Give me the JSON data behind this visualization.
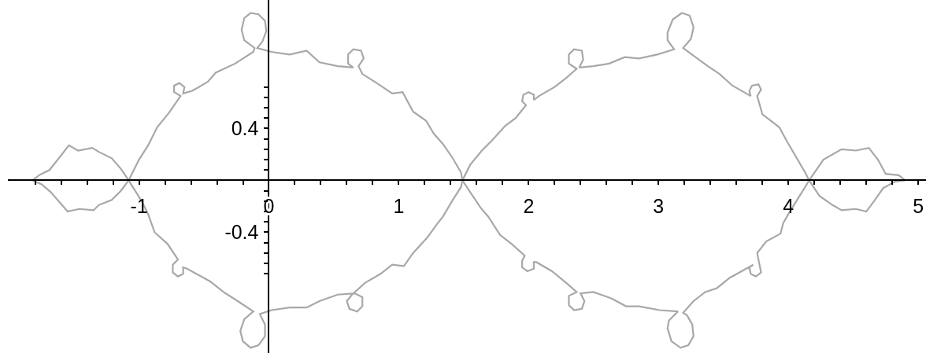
{
  "chart_data": {
    "type": "line",
    "xlim": [
      -2.01,
      5.06
    ],
    "ylim": [
      -1.33,
      1.39
    ],
    "xticks": [
      {
        "value": -1.8,
        "label": null
      },
      {
        "value": -1.6,
        "label": null
      },
      {
        "value": -1.4,
        "label": null
      },
      {
        "value": -1.2,
        "label": null
      },
      -1,
      {
        "value": -0.8,
        "label": null
      },
      {
        "value": -0.6,
        "label": null
      },
      {
        "value": -0.4,
        "label": null
      },
      {
        "value": -0.2,
        "label": null
      },
      0,
      {
        "value": 0.2,
        "label": null
      },
      {
        "value": 0.4,
        "label": null
      },
      {
        "value": 0.6,
        "label": null
      },
      {
        "value": 0.8,
        "label": null
      },
      1,
      {
        "value": 1.2,
        "label": null
      },
      {
        "value": 1.4,
        "label": null
      },
      {
        "value": 1.6,
        "label": null
      },
      {
        "value": 1.8,
        "label": null
      },
      2,
      {
        "value": 2.2,
        "label": null
      },
      {
        "value": 2.4,
        "label": null
      },
      {
        "value": 2.6,
        "label": null
      },
      {
        "value": 2.8,
        "label": null
      },
      3,
      {
        "value": 3.2,
        "label": null
      },
      {
        "value": 3.4,
        "label": null
      },
      {
        "value": 3.6,
        "label": null
      },
      {
        "value": 3.8,
        "label": null
      },
      4,
      {
        "value": 4.2,
        "label": null
      },
      {
        "value": 4.4,
        "label": null
      },
      {
        "value": 4.6,
        "label": null
      },
      {
        "value": 4.8,
        "label": null
      },
      5
    ],
    "yticks": [
      {
        "value": -0.72,
        "label": null
      },
      {
        "value": -0.64,
        "label": null
      },
      {
        "value": -0.56,
        "label": null
      },
      {
        "value": -0.48,
        "label": null
      },
      -0.4,
      {
        "value": -0.32,
        "label": null
      },
      {
        "value": -0.24,
        "label": null
      },
      {
        "value": -0.16,
        "label": null
      },
      {
        "value": -0.08,
        "label": null
      },
      {
        "value": 0.08,
        "label": null
      },
      {
        "value": 0.16,
        "label": null
      },
      {
        "value": 0.24,
        "label": null
      },
      {
        "value": 0.32,
        "label": null
      },
      0.4,
      {
        "value": 0.48,
        "label": null
      },
      {
        "value": 0.56,
        "label": null
      },
      {
        "value": 0.64,
        "label": null
      },
      {
        "value": 0.72,
        "label": null
      }
    ],
    "series": [
      {
        "color": "#a8a8a8",
        "x": [
          -1.82,
          -1.77,
          -1.69,
          -1.61,
          -1.54,
          -1.47,
          -1.36,
          -1.31,
          -1.21,
          -1.14,
          -1.08,
          -0.98,
          -0.93,
          -0.88,
          -0.78,
          -0.7,
          -0.74,
          -0.74,
          -0.7,
          -0.66,
          -0.66,
          -0.63,
          -0.54,
          -0.45,
          -0.35,
          -0.24,
          -0.12,
          -0.19,
          -0.22,
          -0.2,
          -0.14,
          -0.08,
          -0.03,
          -0.03,
          -0.07,
          0.02,
          0.16,
          0.29,
          0.39,
          0.53,
          0.66,
          0.72,
          0.72,
          0.68,
          0.62,
          0.6,
          0.64,
          0.74,
          0.86,
          0.95,
          1.04,
          1.11,
          1.22,
          1.3,
          1.34,
          1.41,
          1.48,
          1.49,
          1.55,
          1.64,
          1.71,
          1.82,
          1.9,
          1.98,
          1.95,
          1.96,
          2.0,
          2.04,
          2.04,
          2.08,
          2.2,
          2.29,
          2.37,
          2.31,
          2.31,
          2.35,
          2.41,
          2.42,
          2.39,
          2.5,
          2.62,
          2.74,
          2.85,
          2.99,
          3.12,
          3.07,
          3.07,
          3.11,
          3.18,
          3.24,
          3.27,
          3.25,
          3.19,
          3.27,
          3.38,
          3.47,
          3.57,
          3.71,
          3.7,
          3.72,
          3.77,
          3.79,
          3.76,
          3.8,
          3.93,
          3.99,
          4.06,
          4.13,
          4.16,
          4.24,
          4.34,
          4.41,
          4.52,
          4.6,
          4.66,
          4.73,
          4.82,
          4.9
        ],
        "values": [
          0,
          0.04,
          0.08,
          0.18,
          0.27,
          0.23,
          0.25,
          0.22,
          0.17,
          0.09,
          0,
          -0.16,
          -0.26,
          -0.4,
          -0.49,
          -0.61,
          -0.65,
          -0.71,
          -0.74,
          -0.72,
          -0.67,
          -0.68,
          -0.73,
          -0.78,
          -0.86,
          -0.93,
          -1.01,
          -1.07,
          -1.16,
          -1.24,
          -1.29,
          -1.27,
          -1.2,
          -1.11,
          -1.03,
          -1.0,
          -0.98,
          -0.98,
          -0.93,
          -0.88,
          -0.87,
          -0.9,
          -0.97,
          -1.01,
          -0.99,
          -0.93,
          -0.88,
          -0.79,
          -0.72,
          -0.65,
          -0.66,
          -0.56,
          -0.44,
          -0.33,
          -0.28,
          -0.16,
          -0.05,
          0,
          0.12,
          0.23,
          0.3,
          0.42,
          0.48,
          0.58,
          0.61,
          0.66,
          0.68,
          0.66,
          0.62,
          0.65,
          0.72,
          0.79,
          0.86,
          0.9,
          0.97,
          1.01,
          1.0,
          0.93,
          0.87,
          0.88,
          0.9,
          0.95,
          0.94,
          0.97,
          1.01,
          1.08,
          1.14,
          1.24,
          1.29,
          1.27,
          1.18,
          1.09,
          1.02,
          0.96,
          0.88,
          0.82,
          0.73,
          0.65,
          0.69,
          0.73,
          0.74,
          0.7,
          0.65,
          0.51,
          0.41,
          0.3,
          0.18,
          0.06,
          0,
          -0.12,
          -0.19,
          -0.23,
          -0.22,
          -0.24,
          -0.16,
          -0.06,
          -0.01,
          0
        ]
      },
      {
        "color": "#a8a8a8",
        "x": [
          -1.82,
          -1.75,
          -1.68,
          -1.61,
          -1.55,
          -1.46,
          -1.35,
          -1.31,
          -1.21,
          -1.14,
          -1.08,
          -1.0,
          -0.93,
          -0.86,
          -0.77,
          -0.68,
          -0.73,
          -0.73,
          -0.69,
          -0.65,
          -0.66,
          -0.59,
          -0.47,
          -0.41,
          -0.26,
          -0.12,
          -0.11,
          -0.19,
          -0.21,
          -0.19,
          -0.14,
          -0.08,
          -0.03,
          -0.02,
          -0.05,
          -0.09,
          0.02,
          0.16,
          0.29,
          0.39,
          0.53,
          0.65,
          0.61,
          0.61,
          0.65,
          0.71,
          0.73,
          0.69,
          0.72,
          0.83,
          0.95,
          1.03,
          1.11,
          1.21,
          1.27,
          1.34,
          1.41,
          1.48,
          1.49,
          1.55,
          1.63,
          1.69,
          1.78,
          1.87,
          1.97,
          1.95,
          1.95,
          1.99,
          2.04,
          2.04,
          2.06,
          2.18,
          2.29,
          2.37,
          2.31,
          2.31,
          2.35,
          2.41,
          2.43,
          2.4,
          2.5,
          2.64,
          2.75,
          2.85,
          3.01,
          3.15,
          3.08,
          3.07,
          3.1,
          3.17,
          3.23,
          3.27,
          3.26,
          3.22,
          3.19,
          3.27,
          3.36,
          3.45,
          3.55,
          3.64,
          3.73,
          3.7,
          3.71,
          3.75,
          3.79,
          3.78,
          3.76,
          3.83,
          3.94,
          3.96,
          4.0,
          4.08,
          4.13,
          4.16,
          4.27,
          4.41,
          4.52,
          4.62,
          4.69,
          4.75,
          4.85,
          4.9
        ],
        "values": [
          0,
          -0.03,
          -0.09,
          -0.17,
          -0.24,
          -0.22,
          -0.23,
          -0.19,
          -0.15,
          -0.08,
          0,
          0.16,
          0.27,
          0.41,
          0.52,
          0.65,
          0.68,
          0.73,
          0.75,
          0.72,
          0.67,
          0.69,
          0.76,
          0.83,
          0.9,
          0.99,
          1.02,
          1.08,
          1.16,
          1.25,
          1.29,
          1.28,
          1.23,
          1.15,
          1.07,
          1.02,
          0.99,
          0.97,
          1.0,
          0.91,
          0.88,
          0.87,
          0.9,
          0.97,
          1.01,
          1.0,
          0.94,
          0.88,
          0.82,
          0.75,
          0.67,
          0.68,
          0.53,
          0.46,
          0.36,
          0.28,
          0.18,
          0.06,
          0,
          -0.09,
          -0.21,
          -0.28,
          -0.42,
          -0.49,
          -0.58,
          -0.62,
          -0.67,
          -0.7,
          -0.68,
          -0.63,
          -0.63,
          -0.7,
          -0.79,
          -0.86,
          -0.89,
          -0.96,
          -1.0,
          -0.99,
          -0.93,
          -0.87,
          -0.86,
          -0.91,
          -0.97,
          -0.97,
          -1.0,
          -1.01,
          -1.08,
          -1.14,
          -1.24,
          -1.29,
          -1.27,
          -1.2,
          -1.11,
          -1.04,
          -1.02,
          -0.93,
          -0.86,
          -0.83,
          -0.75,
          -0.7,
          -0.65,
          -0.67,
          -0.72,
          -0.74,
          -0.71,
          -0.66,
          -0.56,
          -0.47,
          -0.41,
          -0.33,
          -0.26,
          -0.13,
          -0.05,
          0,
          0.16,
          0.24,
          0.23,
          0.25,
          0.16,
          0.05,
          0.04,
          0
        ]
      }
    ]
  }
}
